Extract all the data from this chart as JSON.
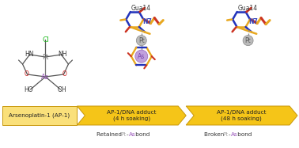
{
  "bg_color": "#ffffff",
  "arrow_color": "#F5C518",
  "arrow_edge_color": "#C8970A",
  "arrow_light_color": "#FAE07A",
  "box1_text": "Arsenoplatin-1 (AP-1)",
  "box2_text": "AP-1/DNA adduct\n(4 h soaking)",
  "box3_text": "AP-1/DNA adduct\n(48 h soaking)",
  "pt_color": "#AAAAAA",
  "pt_text_color": "#888888",
  "as_color": "#B090D0",
  "as_text_color": "#9955BB",
  "cl_color": "#22BB22",
  "n_color": "#3333CC",
  "o_color": "#CC2222",
  "c_color": "#333333",
  "orange_color": "#E8A820",
  "blue_color": "#2233BB",
  "red_color": "#CC3322",
  "dna_red": "#CC3322",
  "dna_orange": "#E8A820",
  "dna_blue": "#2233BB",
  "figw": 3.78,
  "figh": 1.87,
  "dpi": 100
}
